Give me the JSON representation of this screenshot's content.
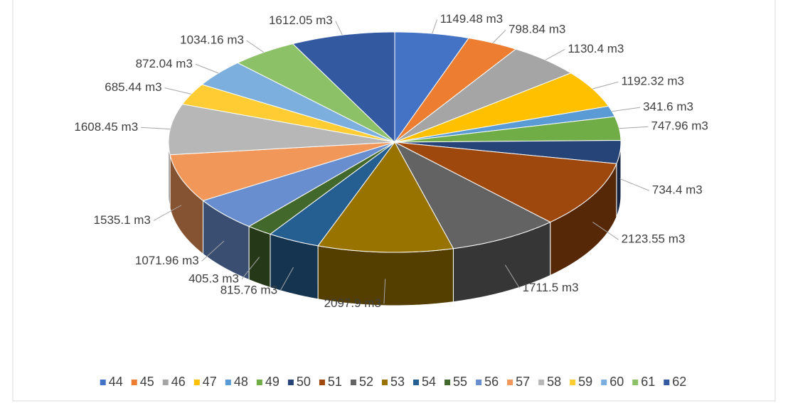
{
  "chart_data": {
    "type": "pie",
    "categories": [
      "44",
      "45",
      "46",
      "47",
      "48",
      "49",
      "50",
      "51",
      "52",
      "53",
      "54",
      "55",
      "56",
      "57",
      "58",
      "59",
      "60",
      "61",
      "62"
    ],
    "values": [
      1149.48,
      798.84,
      1130.4,
      1192.32,
      341.6,
      747.96,
      734.4,
      2123.55,
      1711.5,
      2097.9,
      815.76,
      405.3,
      1071.96,
      1535.1,
      1608.45,
      685.44,
      872.04,
      1034.16,
      1612.05
    ],
    "value_labels": [
      "1149.48 m3",
      "798.84 m3",
      "1130.4 m3",
      "1192.32 m3",
      "341.6 m3",
      "747.96 m3",
      "734.4 m3",
      "2123.55 m3",
      "1711.5 m3",
      "2097.9 m3",
      "815.76 m3",
      "405.3 m3",
      "1071.96 m3",
      "1535.1 m3",
      "1608.45 m3",
      "685.44 m3",
      "872.04 m3",
      "1034.16 m3",
      "1612.05 m3"
    ],
    "colors": [
      "#4472c4",
      "#ed7d31",
      "#a5a5a5",
      "#ffc000",
      "#5b9bd5",
      "#70ad47",
      "#264478",
      "#9e480e",
      "#636363",
      "#997300",
      "#255e91",
      "#43682b",
      "#698ed0",
      "#f1975a",
      "#b7b7b7",
      "#ffcd33",
      "#7cafdd",
      "#8cc168",
      "#335aa1"
    ],
    "legend": "bottom"
  }
}
